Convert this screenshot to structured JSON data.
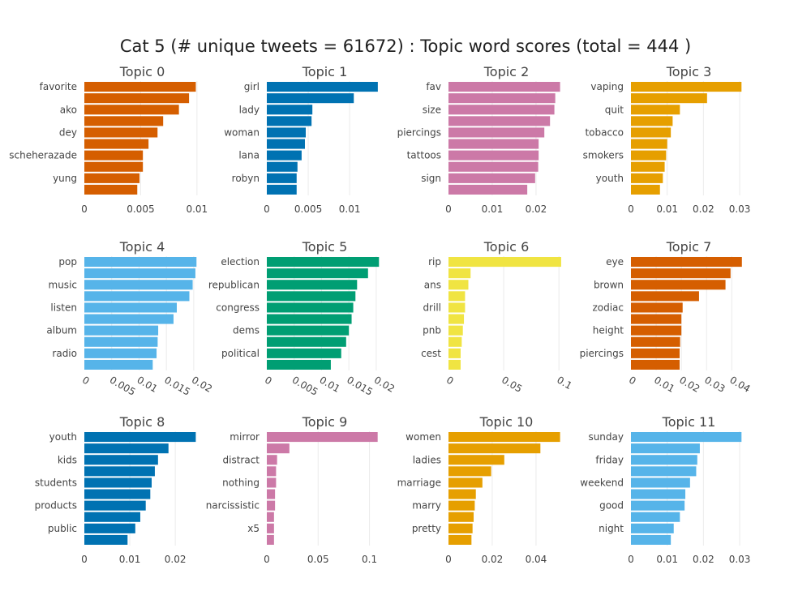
{
  "title": "Cat 5 (# unique tweets = 61672) : Topic word scores (total = 444 )",
  "chart_data": [
    {
      "type": "bar",
      "title": "Topic 0",
      "color": "#D55E00",
      "words": [
        "favorite",
        "",
        "ako",
        "",
        "dey",
        "",
        "scheherazade",
        "",
        "yung",
        ""
      ],
      "values": [
        0.0099,
        0.0093,
        0.0084,
        0.007,
        0.0065,
        0.0057,
        0.0052,
        0.0052,
        0.0049,
        0.0047
      ],
      "xlim": [
        0,
        0.0103
      ],
      "ticks": [
        0,
        0.005,
        0.01
      ],
      "tick_labels": [
        "0",
        "0.005",
        "0.01"
      ]
    },
    {
      "type": "bar",
      "title": "Topic 1",
      "color": "#0072B2",
      "words": [
        "girl",
        "",
        "lady",
        "",
        "woman",
        "",
        "lana",
        "",
        "robyn",
        ""
      ],
      "values": [
        0.0134,
        0.0105,
        0.0055,
        0.0054,
        0.0047,
        0.0046,
        0.0042,
        0.0037,
        0.0036,
        0.0036
      ],
      "xlim": [
        0,
        0.014
      ],
      "ticks": [
        0,
        0.005,
        0.01
      ],
      "tick_labels": [
        "0",
        "0.005",
        "0.01"
      ]
    },
    {
      "type": "bar",
      "title": "Topic 2",
      "color": "#CC79A7",
      "words": [
        "fav",
        "",
        "size",
        "",
        "piercings",
        "",
        "tattoos",
        "",
        "sign",
        ""
      ],
      "values": [
        0.0255,
        0.0244,
        0.0242,
        0.0232,
        0.0219,
        0.0206,
        0.0206,
        0.0205,
        0.0198,
        0.018
      ],
      "xlim": [
        0,
        0.0265
      ],
      "ticks": [
        0,
        0.01,
        0.02
      ],
      "tick_labels": [
        "0",
        "0.01",
        "0.02"
      ]
    },
    {
      "type": "bar",
      "title": "Topic 3",
      "color": "#E69F00",
      "words": [
        "vaping",
        "",
        "quit",
        "",
        "tobacco",
        "",
        "smokers",
        "",
        "youth",
        ""
      ],
      "values": [
        0.0305,
        0.021,
        0.0135,
        0.0115,
        0.011,
        0.01,
        0.0097,
        0.0093,
        0.0088,
        0.008
      ],
      "xlim": [
        0,
        0.032
      ],
      "ticks": [
        0,
        0.01,
        0.02,
        0.03
      ],
      "tick_labels": [
        "0",
        "0.01",
        "0.02",
        "0.03"
      ]
    },
    {
      "type": "bar",
      "title": "Topic 4",
      "color": "#56B4E9",
      "words": [
        "pop",
        "",
        "music",
        "",
        "listen",
        "",
        "album",
        "",
        "radio",
        ""
      ],
      "values": [
        0.0205,
        0.0203,
        0.0198,
        0.0192,
        0.0169,
        0.0163,
        0.0135,
        0.0134,
        0.0132,
        0.0125
      ],
      "xlim": [
        0,
        0.0212
      ],
      "ticks": [
        0,
        0.005,
        0.01,
        0.015,
        0.02
      ],
      "tick_labels": [
        "0",
        "0.005",
        "0.01",
        "0.015",
        "0.02"
      ]
    },
    {
      "type": "bar",
      "title": "Topic 5",
      "color": "#009E73",
      "words": [
        "election",
        "",
        "republican",
        "",
        "congress",
        "",
        "dems",
        "",
        "political",
        ""
      ],
      "values": [
        0.0205,
        0.0185,
        0.0165,
        0.0162,
        0.0158,
        0.0155,
        0.015,
        0.0145,
        0.0136,
        0.0117
      ],
      "xlim": [
        0,
        0.0212
      ],
      "ticks": [
        0,
        0.005,
        0.01,
        0.015,
        0.02
      ],
      "tick_labels": [
        "0",
        "0.005",
        "0.01",
        "0.015",
        "0.02"
      ]
    },
    {
      "type": "bar",
      "title": "Topic 6",
      "color": "#F0E442",
      "words": [
        "rip",
        "",
        "ans",
        "",
        "drill",
        "",
        "pnb",
        "",
        "cest",
        ""
      ],
      "values": [
        0.102,
        0.02,
        0.018,
        0.015,
        0.015,
        0.014,
        0.013,
        0.012,
        0.011,
        0.011
      ],
      "xlim": [
        0,
        0.105
      ],
      "ticks": [
        0,
        0.05,
        0.1
      ],
      "tick_labels": [
        "0",
        "0.05",
        "0.1"
      ]
    },
    {
      "type": "bar",
      "title": "Topic 7",
      "color": "#D55E00",
      "words": [
        "eye",
        "",
        "brown",
        "",
        "zodiac",
        "",
        "height",
        "",
        "piercings",
        ""
      ],
      "values": [
        0.044,
        0.0395,
        0.0375,
        0.027,
        0.0205,
        0.02,
        0.02,
        0.0195,
        0.0193,
        0.0193
      ],
      "xlim": [
        0,
        0.046
      ],
      "ticks": [
        0,
        0.01,
        0.02,
        0.03,
        0.04
      ],
      "tick_labels": [
        "0",
        "0.01",
        "0.02",
        "0.03",
        "0.04"
      ]
    },
    {
      "type": "bar",
      "title": "Topic 8",
      "color": "#0072B2",
      "words": [
        "youth",
        "",
        "kids",
        "",
        "students",
        "",
        "products",
        "",
        "public",
        ""
      ],
      "values": [
        0.0245,
        0.0185,
        0.0162,
        0.0155,
        0.0148,
        0.0145,
        0.0135,
        0.0123,
        0.0112,
        0.0095
      ],
      "xlim": [
        0,
        0.0255
      ],
      "ticks": [
        0,
        0.01,
        0.02
      ],
      "tick_labels": [
        "0",
        "0.01",
        "0.02"
      ]
    },
    {
      "type": "bar",
      "title": "Topic 9",
      "color": "#CC79A7",
      "words": [
        "mirror",
        "",
        "distract",
        "",
        "nothing",
        "",
        "narcissistic",
        "",
        "x5",
        ""
      ],
      "values": [
        0.108,
        0.022,
        0.01,
        0.009,
        0.009,
        0.008,
        0.008,
        0.007,
        0.007,
        0.007
      ],
      "xlim": [
        0,
        0.113
      ],
      "ticks": [
        0,
        0.05,
        0.1
      ],
      "tick_labels": [
        "0",
        "0.05",
        "0.1"
      ]
    },
    {
      "type": "bar",
      "title": "Topic 10",
      "color": "#E69F00",
      "words": [
        "women",
        "",
        "ladies",
        "",
        "marriage",
        "",
        "marry",
        "",
        "pretty",
        ""
      ],
      "values": [
        0.051,
        0.042,
        0.0255,
        0.0195,
        0.0155,
        0.0125,
        0.012,
        0.0115,
        0.011,
        0.0105
      ],
      "xlim": [
        0,
        0.053
      ],
      "ticks": [
        0,
        0.02,
        0.04
      ],
      "tick_labels": [
        "0",
        "0.02",
        "0.04"
      ]
    },
    {
      "type": "bar",
      "title": "Topic 11",
      "color": "#56B4E9",
      "words": [
        "sunday",
        "",
        "friday",
        "",
        "weekend",
        "",
        "good",
        "",
        "night",
        ""
      ],
      "values": [
        0.0305,
        0.019,
        0.0183,
        0.018,
        0.0163,
        0.015,
        0.0148,
        0.0135,
        0.0118,
        0.011
      ],
      "xlim": [
        0,
        0.032
      ],
      "ticks": [
        0,
        0.01,
        0.02,
        0.03
      ],
      "tick_labels": [
        "0",
        "0.01",
        "0.02",
        "0.03"
      ]
    }
  ]
}
